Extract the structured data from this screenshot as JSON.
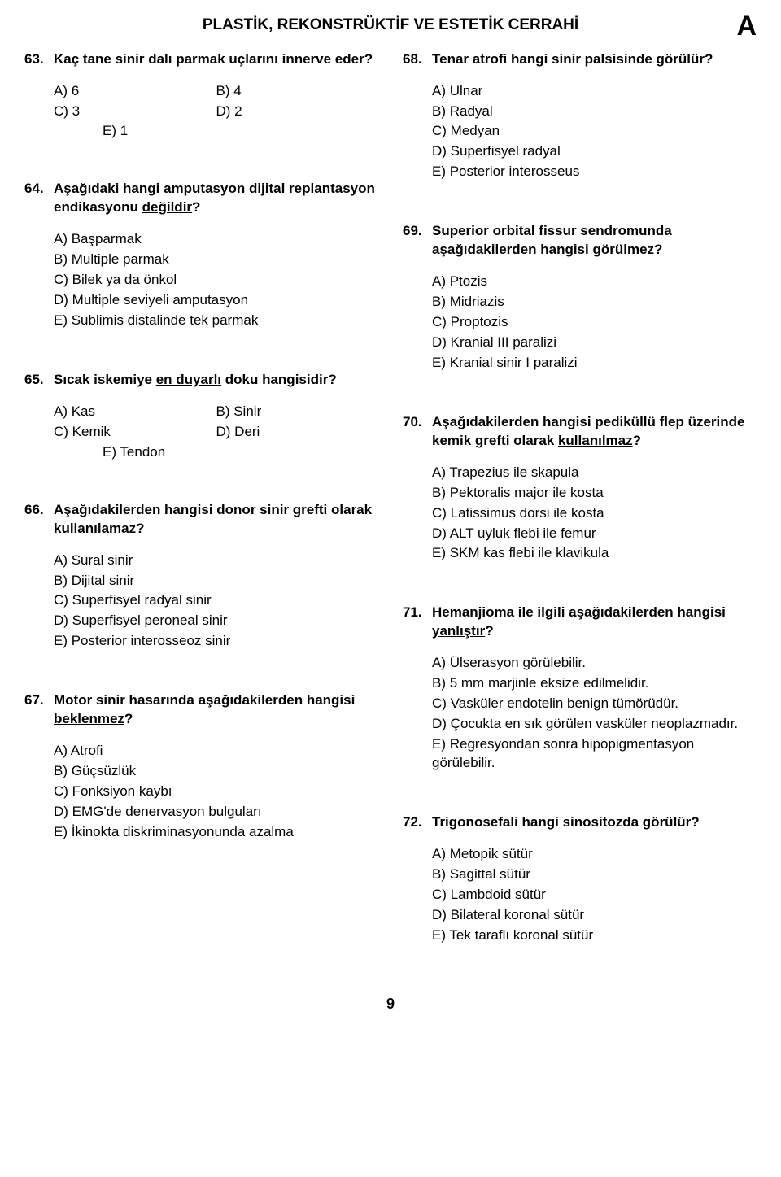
{
  "header": {
    "title": "PLASTİK, REKONSTRÜKTİF VE ESTETİK CERRAHİ",
    "letter": "A"
  },
  "page_number": "9",
  "left": {
    "q63": {
      "num": "63.",
      "text_plain": "Kaç tane sinir dalı parmak uçlarını innerve eder?",
      "opts": {
        "a": "A) 6",
        "b": "B) 4",
        "c": "C) 3",
        "d": "D) 2",
        "e": "E) 1"
      }
    },
    "q64": {
      "num": "64.",
      "text_pre": "Aşağıdaki hangi amputasyon dijital replantasyon endikasyonu ",
      "text_u": "değildir",
      "text_post": "?",
      "opts": {
        "a": "A) Başparmak",
        "b": "B) Multiple parmak",
        "c": "C) Bilek ya da önkol",
        "d": "D) Multiple seviyeli amputasyon",
        "e": "E) Sublimis distalinde tek parmak"
      }
    },
    "q65": {
      "num": "65.",
      "text_pre": "Sıcak iskemiye ",
      "text_u": "en duyarlı",
      "text_post": " doku hangisidir?",
      "opts": {
        "a": "A) Kas",
        "b": "B) Sinir",
        "c": "C) Kemik",
        "d": "D) Deri",
        "e": "E) Tendon"
      }
    },
    "q66": {
      "num": "66.",
      "text_pre": "Aşağıdakilerden hangisi donor sinir grefti olarak ",
      "text_u": "kullanılamaz",
      "text_post": "?",
      "opts": {
        "a": "A) Sural sinir",
        "b": "B) Dijital sinir",
        "c": "C) Superfisyel radyal sinir",
        "d": "D) Superfisyel peroneal sinir",
        "e": "E) Posterior interosseoz sinir"
      }
    },
    "q67": {
      "num": "67.",
      "text_pre": "Motor sinir hasarında aşağıdakilerden hangisi ",
      "text_u": "beklenmez",
      "text_post": "?",
      "opts": {
        "a": "A) Atrofi",
        "b": "B) Güçsüzlük",
        "c": "C) Fonksiyon kaybı",
        "d": "D) EMG'de denervasyon bulguları",
        "e": "E) İkinokta diskriminasyonunda azalma"
      }
    }
  },
  "right": {
    "q68": {
      "num": "68.",
      "text_plain": "Tenar atrofi hangi sinir palsisinde görülür?",
      "opts": {
        "a": "A) Ulnar",
        "b": "B) Radyal",
        "c": "C) Medyan",
        "d": "D) Superfisyel radyal",
        "e": "E) Posterior interosseus"
      }
    },
    "q69": {
      "num": "69.",
      "text_pre": "Superior orbital fissur sendromunda aşağıdakilerden hangisi ",
      "text_u": "görülmez",
      "text_post": "?",
      "opts": {
        "a": "A) Ptozis",
        "b": "B) Midriazis",
        "c": "C) Proptozis",
        "d": "D) Kranial III paralizi",
        "e": "E) Kranial sinir I paralizi"
      }
    },
    "q70": {
      "num": "70.",
      "text_pre": "Aşağıdakilerden hangisi pediküllü flep üzerinde kemik grefti olarak ",
      "text_u": "kullanılmaz",
      "text_post": "?",
      "opts": {
        "a": "A) Trapezius ile skapula",
        "b": "B) Pektoralis major ile kosta",
        "c": "C) Latissimus dorsi ile kosta",
        "d": "D) ALT uyluk flebi ile femur",
        "e": "E) SKM kas flebi ile klavikula"
      }
    },
    "q71": {
      "num": "71.",
      "text_pre": "Hemanjioma ile ilgili aşağıdakilerden hangisi ",
      "text_u": "yanlıştır",
      "text_post": "?",
      "opts": {
        "a": "A) Ülserasyon görülebilir.",
        "b": "B) 5 mm marjinle eksize edilmelidir.",
        "c": "C) Vasküler endotelin benign tümörüdür.",
        "d": "D) Çocukta en sık görülen vasküler neoplazmadır.",
        "e": "E) Regresyondan sonra hipopigmentasyon görülebilir."
      }
    },
    "q72": {
      "num": "72.",
      "text_plain": "Trigonosefali hangi sinositozda görülür?",
      "opts": {
        "a": "A) Metopik sütür",
        "b": "B) Sagittal sütür",
        "c": "C) Lambdoid sütür",
        "d": "D) Bilateral koronal sütür",
        "e": "E) Tek taraflı koronal sütür"
      }
    }
  }
}
